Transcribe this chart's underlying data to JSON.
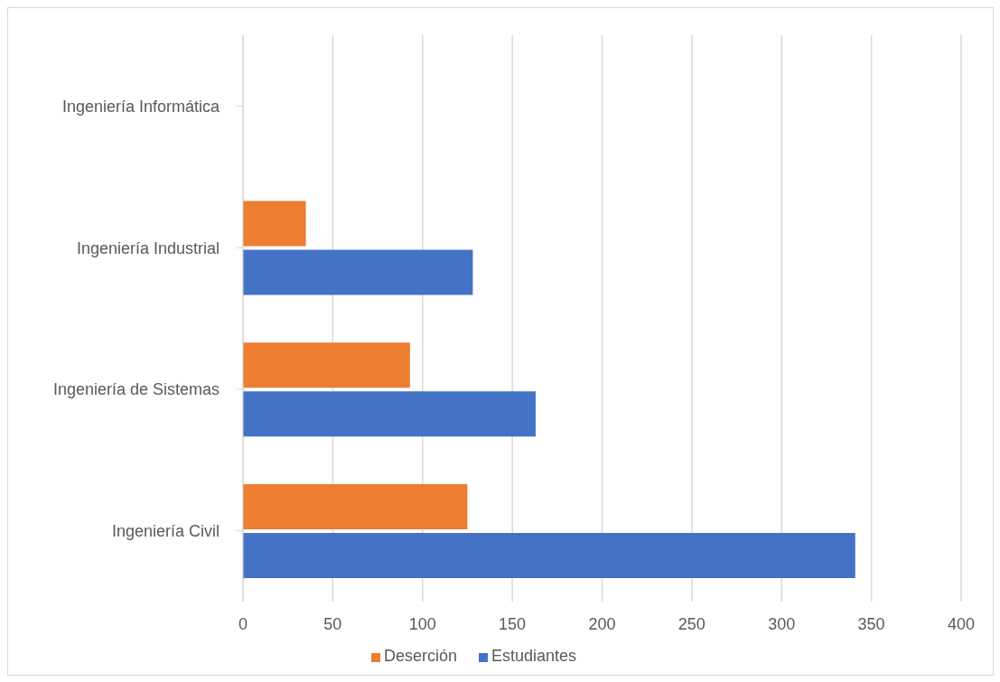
{
  "chart_data": {
    "type": "bar",
    "orientation": "horizontal",
    "categories": [
      "Ingeniería Informática",
      "Ingeniería Industrial",
      "Ingeniería de Sistemas",
      "Ingeniería Civil"
    ],
    "series": [
      {
        "name": "Deserción",
        "color": "#ed7d31",
        "values": [
          null,
          35,
          93,
          125
        ]
      },
      {
        "name": "Estudiantes",
        "color": "#4472c4",
        "values": [
          null,
          128,
          163,
          341
        ]
      }
    ],
    "xlim": [
      0,
      400
    ],
    "xticks": [
      0,
      50,
      100,
      150,
      200,
      250,
      300,
      350,
      400
    ],
    "grid": "x",
    "legend": "bottom"
  }
}
